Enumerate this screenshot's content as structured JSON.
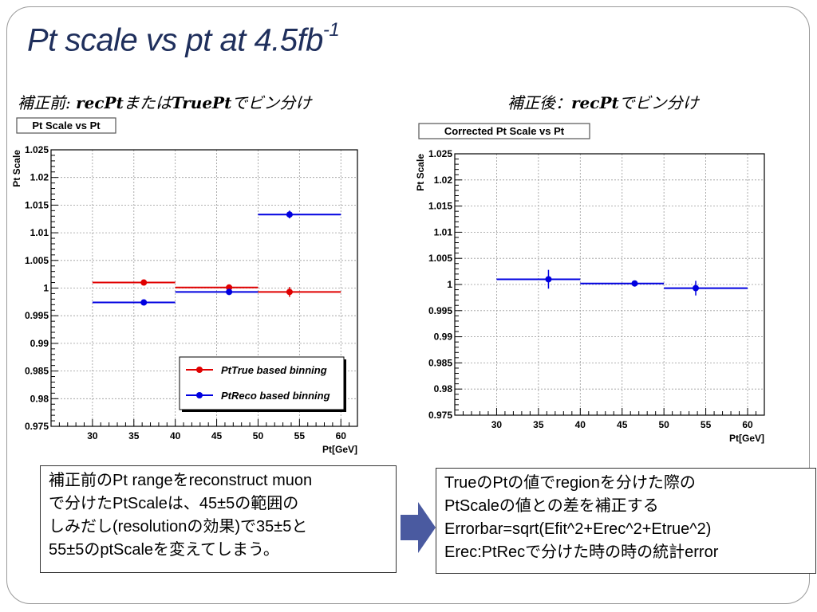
{
  "slide": {
    "title_main": "Pt scale vs pt at 4.5fb",
    "title_sup": "-1",
    "left_caption_pre": "補正前: ",
    "left_caption_b1": "recPt",
    "left_caption_mid": "または",
    "left_caption_b2": "TruePt",
    "left_caption_post": "でビン分け",
    "right_caption_pre": "補正後：",
    "right_caption_b": "recPt",
    "right_caption_post": "でビン分け",
    "left_box_lines": [
      "補正前のPt rangeをreconstruct muon",
      "で分けたPtScaleは、45±5の範囲の",
      "しみだし(resolutionの効果)で35±5と",
      "55±5のptScaleを変えてしまう。"
    ],
    "right_box_lines": [
      "TrueのPtの値でregionを分けた際の",
      "PtScaleの値との差を補正する",
      "Errorbar=sqrt(Efit^2+Erec^2+Etrue^2)",
      "Erec:PtRecで分けた時の時の統計error"
    ],
    "colors": {
      "title": "#1f2f5c",
      "red": "#e00000",
      "blue": "#0000e0",
      "arrow": "#4a5aa0"
    }
  },
  "chart_data": [
    {
      "type": "scatter",
      "title": "Pt Scale vs Pt",
      "xlabel": "Pt[GeV]",
      "ylabel": "Pt Scale",
      "xlim": [
        25,
        62
      ],
      "ylim": [
        0.975,
        1.025
      ],
      "xticks": [
        30,
        35,
        40,
        45,
        50,
        55,
        60
      ],
      "yticks": [
        0.975,
        0.98,
        0.985,
        0.99,
        0.995,
        1,
        1.005,
        1.01,
        1.015,
        1.02,
        1.025
      ],
      "yticklabels": [
        "0.975",
        "0.98",
        "0.985",
        "0.99",
        "0.995",
        "1",
        "1.005",
        "1.01",
        "1.015",
        "1.02",
        "1.025"
      ],
      "grid": true,
      "legend": "bottom-right",
      "series": [
        {
          "name": "PtTrue based binning",
          "color": "#e00000",
          "bins": [
            [
              30,
              40
            ],
            [
              40,
              50
            ],
            [
              50,
              60
            ]
          ],
          "x": [
            36.2,
            46.5,
            53.8
          ],
          "y": [
            1.001,
            1.0001,
            0.9993
          ],
          "yerr": [
            0.0005,
            0.0004,
            0.0009
          ]
        },
        {
          "name": "PtReco based binning",
          "color": "#0000e0",
          "bins": [
            [
              30,
              40
            ],
            [
              40,
              50
            ],
            [
              50,
              60
            ]
          ],
          "x": [
            36.2,
            46.5,
            53.8
          ],
          "y": [
            0.9974,
            0.9993,
            1.0133
          ],
          "yerr": [
            0.0004,
            0.0003,
            0.0007
          ]
        }
      ]
    },
    {
      "type": "scatter",
      "title": "Corrected Pt Scale vs Pt",
      "xlabel": "Pt[GeV]",
      "ylabel": "Pt Scale",
      "xlim": [
        25,
        62
      ],
      "ylim": [
        0.975,
        1.025
      ],
      "xticks": [
        30,
        35,
        40,
        45,
        50,
        55,
        60
      ],
      "yticks": [
        0.975,
        0.98,
        0.985,
        0.99,
        0.995,
        1,
        1.005,
        1.01,
        1.015,
        1.02,
        1.025
      ],
      "yticklabels": [
        "0.975",
        "0.98",
        "0.985",
        "0.99",
        "0.995",
        "1",
        "1.005",
        "1.01",
        "1.015",
        "1.02",
        "1.025"
      ],
      "grid": true,
      "series": [
        {
          "color": "#0000e0",
          "bins": [
            [
              30,
              40
            ],
            [
              40,
              50
            ],
            [
              50,
              60
            ]
          ],
          "x": [
            36.2,
            46.5,
            53.8
          ],
          "y": [
            1.001,
            1.0002,
            0.9993
          ],
          "yerr": [
            0.0018,
            0.0004,
            0.0014
          ]
        }
      ]
    }
  ]
}
